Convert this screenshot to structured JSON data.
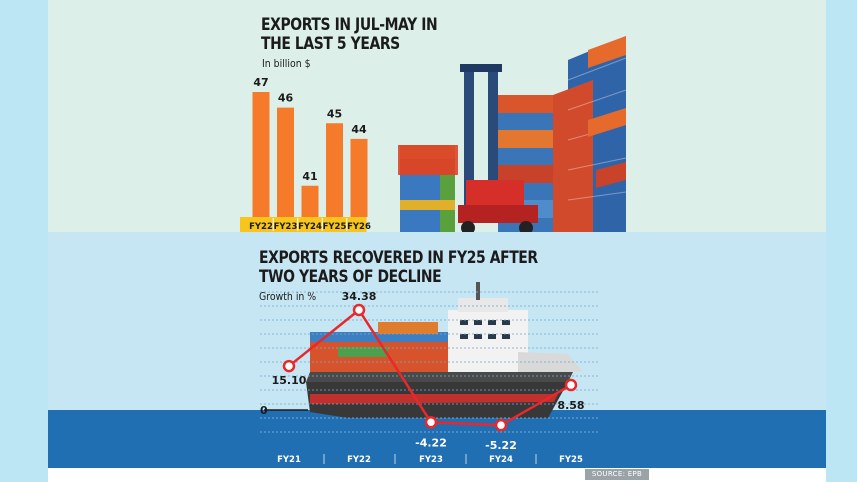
{
  "colors": {
    "bar": "#f57a2a",
    "axis_band": "#f7c51e",
    "line": "#e8282b",
    "sea": "#1f6fb2"
  },
  "chart_data": [
    {
      "type": "bar",
      "title": "EXPORTS IN JUL-MAY IN THE LAST 5 YEARS",
      "title_lines": [
        "EXPORTS IN JUL-MAY IN",
        "THE LAST 5 YEARS"
      ],
      "unit": "In billion $",
      "categories": [
        "FY22",
        "FY23",
        "FY24",
        "FY25",
        "FY26"
      ],
      "values": [
        47,
        46,
        41,
        45,
        44
      ],
      "ylim": [
        39,
        47
      ],
      "grid": false,
      "legend": "none"
    },
    {
      "type": "line",
      "title": "EXPORTS RECOVERED IN FY25 AFTER TWO YEARS OF DECLINE",
      "title_lines": [
        "EXPORTS RECOVERED IN FY25 AFTER",
        "TWO YEARS OF DECLINE"
      ],
      "unit": "Growth in %",
      "categories": [
        "FY21",
        "FY22",
        "FY23",
        "FY24",
        "FY25"
      ],
      "values": [
        15.1,
        34.38,
        -4.22,
        -5.22,
        8.58
      ],
      "value_labels": [
        "15.10",
        "34.38",
        "-4.22",
        "-5.22",
        "8.58"
      ],
      "zero_label": "0",
      "ylim": [
        -8,
        36
      ],
      "grid": true,
      "legend": "none"
    }
  ],
  "source": "SOURCE: EPB"
}
